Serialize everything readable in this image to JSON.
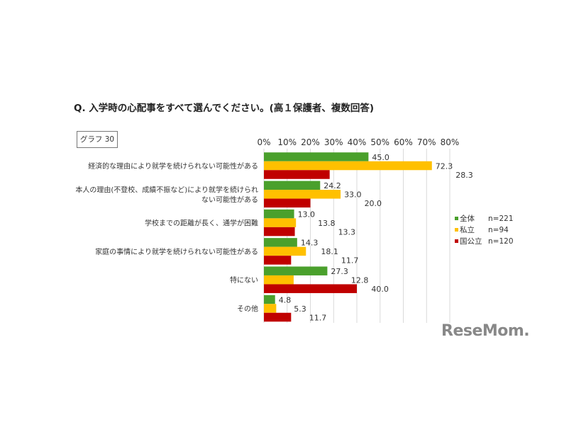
{
  "title": "Q. 入学時の心配事をすべて選んでください。(高１保護者、複数回答)",
  "graph_label": "グラフ 30",
  "logo": "ReseMom.",
  "chart_data": {
    "type": "bar",
    "orientation": "horizontal",
    "categories": [
      [
        "経済的な理由により就学を続けられない可能性がある"
      ],
      [
        "本人の理由(不登校、成績不振など)により就学を続けられ",
        "ない可能性がある"
      ],
      [
        "学校までの距離が長く、通学が困難"
      ],
      [
        "家庭の事情により就学を続けられない可能性がある"
      ],
      [
        "特にない"
      ],
      [
        "その他"
      ]
    ],
    "series": [
      {
        "name": "全体",
        "n": "n=221",
        "color": "#4aa02c",
        "values": [
          45.0,
          24.2,
          13.0,
          14.3,
          27.3,
          4.8
        ],
        "labels": [
          "45.0",
          "24.2",
          "13.0",
          "14.3",
          "27.3",
          "4.8"
        ]
      },
      {
        "name": "私立",
        "n": "n=94",
        "color": "#ffc000",
        "values": [
          72.3,
          33.0,
          13.8,
          18.1,
          12.8,
          5.3
        ],
        "labels": [
          "72.3",
          "33.0",
          "13.8",
          "18.1",
          "12.8",
          "5.3"
        ]
      },
      {
        "name": "国公立",
        "n": "n=120",
        "color": "#c00000",
        "values": [
          28.3,
          20.0,
          13.3,
          11.7,
          40.0,
          11.7
        ],
        "labels": [
          "28.3",
          "20.0",
          "13.3",
          "11.7",
          "40.0",
          "11.7"
        ]
      }
    ],
    "xlim": [
      0,
      80
    ],
    "xticks": [
      "0%",
      "10%",
      "20%",
      "30%",
      "40%",
      "50%",
      "60%",
      "70%",
      "80%"
    ],
    "grid": true,
    "legend": "right"
  }
}
